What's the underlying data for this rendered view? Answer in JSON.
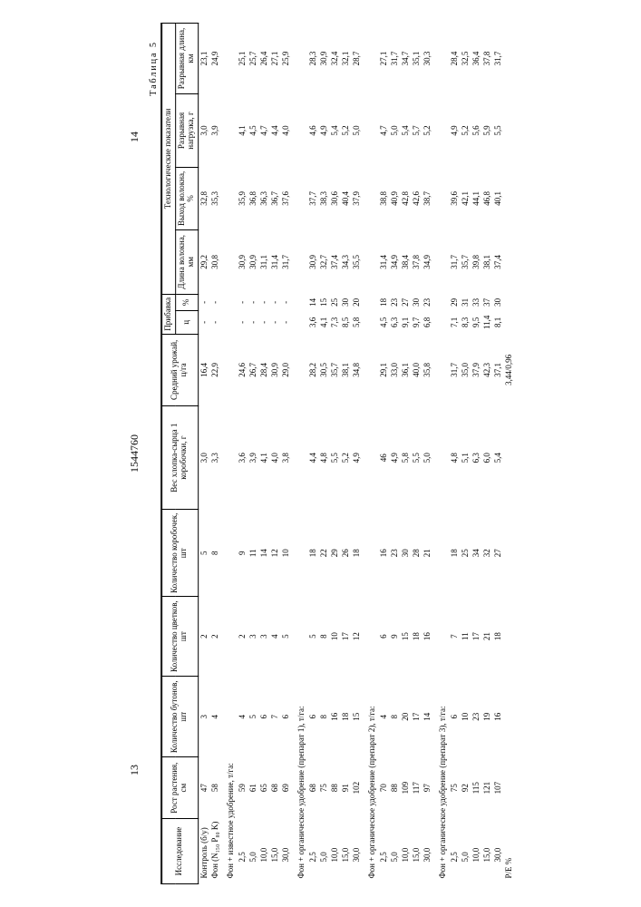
{
  "page_left": "13",
  "doc_number": "1544760",
  "page_right": "14",
  "table_caption": "Таблица 5",
  "columns": [
    "Исследование",
    "Рост растения, см",
    "Количество бутонов, шт",
    "Количество цветков, шт",
    "Количество коробочек, шт",
    "Вес хлопка-сырца 1 коробочки, г",
    "Средний урожай, ц/га",
    "Прибавка ц",
    "Прибавка %",
    "Длина волокна, мм",
    "Выход волокна, %",
    "Разрывная нагрузка, г",
    "Разрывная длина, км"
  ],
  "group_header_tech": "Технологические показатели",
  "rows": [
    {
      "type": "data",
      "label": "Контроль (б/у)",
      "v": [
        "47",
        "3",
        "2",
        "5",
        "3,0",
        "16,4",
        "-",
        "-",
        "29,2",
        "32,8",
        "3,0",
        "23,1"
      ]
    },
    {
      "type": "data",
      "label": "Фон (N₁₅₀ P₈₀ K)",
      "v": [
        "58",
        "4",
        "2",
        "8",
        "3,3",
        "22,9",
        "-",
        "-",
        "30,8",
        "35,3",
        "3,9",
        "24,9"
      ]
    },
    {
      "type": "section",
      "label": "Фон + известное удобрение, т/га:"
    },
    {
      "type": "sub",
      "label": "2,5",
      "v": [
        "59",
        "4",
        "2",
        "9",
        "3,6",
        "24,6",
        "-",
        "-",
        "30,9",
        "35,9",
        "4,1",
        "25,1"
      ]
    },
    {
      "type": "sub",
      "label": "5,0",
      "v": [
        "61",
        "5",
        "3",
        "11",
        "3,9",
        "26,7",
        "-",
        "-",
        "30,9",
        "36,8",
        "4,5",
        "25,7"
      ]
    },
    {
      "type": "sub",
      "label": "10,0",
      "v": [
        "65",
        "6",
        "3",
        "14",
        "4,1",
        "28,4",
        "-",
        "-",
        "31,1",
        "36,3",
        "4,7",
        "26,4"
      ]
    },
    {
      "type": "sub",
      "label": "15,0",
      "v": [
        "68",
        "7",
        "4",
        "12",
        "4,0",
        "30,9",
        "-",
        "-",
        "31,4",
        "36,7",
        "4,4",
        "27,1"
      ]
    },
    {
      "type": "sub",
      "label": "30,0",
      "v": [
        "69",
        "6",
        "5",
        "10",
        "3,8",
        "29,0",
        "-",
        "-",
        "31,7",
        "37,6",
        "4,0",
        "25,9"
      ]
    },
    {
      "type": "section",
      "label": "Фон + органическое удобрение (препарат 1), т/га:"
    },
    {
      "type": "sub",
      "label": "2,5",
      "v": [
        "68",
        "6",
        "5",
        "18",
        "4,4",
        "28,2",
        "3,6",
        "14",
        "30,9",
        "37,7",
        "4,6",
        "28,3"
      ]
    },
    {
      "type": "sub",
      "label": "5,0",
      "v": [
        "75",
        "8",
        "8",
        "22",
        "4,8",
        "30,5",
        "4,1",
        "15",
        "32,7",
        "38,3",
        "4,9",
        "30,9"
      ]
    },
    {
      "type": "sub",
      "label": "10,0",
      "v": [
        "88",
        "16",
        "10",
        "29",
        "5,5",
        "35,7",
        "7,3",
        "25",
        "37,4",
        "30,6",
        "5,4",
        "32,4"
      ]
    },
    {
      "type": "sub",
      "label": "15,0",
      "v": [
        "91",
        "18",
        "17",
        "26",
        "5,2",
        "38,1",
        "8,5",
        "30",
        "34,3",
        "40,4",
        "5,2",
        "32,1"
      ]
    },
    {
      "type": "sub",
      "label": "30,0",
      "v": [
        "102",
        "15",
        "12",
        "18",
        "4,9",
        "34,8",
        "5,8",
        "20",
        "35,5",
        "37,9",
        "5,0",
        "28,7"
      ]
    },
    {
      "type": "section",
      "label": "Фон + органическое удобрение (препарат 2), т/га:"
    },
    {
      "type": "sub",
      "label": "2,5",
      "v": [
        "70",
        "4",
        "6",
        "16",
        "46",
        "29,1",
        "4,5",
        "18",
        "31,4",
        "38,8",
        "4,7",
        "27,1"
      ]
    },
    {
      "type": "sub",
      "label": "5,0",
      "v": [
        "88",
        "8",
        "9",
        "23",
        "4,9",
        "33,0",
        "6,3",
        "23",
        "34,9",
        "40,9",
        "5,0",
        "31,7"
      ]
    },
    {
      "type": "sub",
      "label": "10,0",
      "v": [
        "109",
        "20",
        "15",
        "30",
        "5,8",
        "36,1",
        "9,1",
        "27",
        "38,4",
        "42,8",
        "5,4",
        "34,7"
      ]
    },
    {
      "type": "sub",
      "label": "15,0",
      "v": [
        "117",
        "17",
        "18",
        "28",
        "5,5",
        "40,0",
        "9,7",
        "30",
        "37,8",
        "42,6",
        "5,7",
        "35,1"
      ]
    },
    {
      "type": "sub",
      "label": "30,0",
      "v": [
        "97",
        "14",
        "16",
        "21",
        "5,0",
        "35,8",
        "6,8",
        "23",
        "34,9",
        "38,7",
        "5,2",
        "30,3"
      ]
    },
    {
      "type": "section",
      "label": "Фон + органическое удобрение (препарат 3), т/га:"
    },
    {
      "type": "sub",
      "label": "2,5",
      "v": [
        "75",
        "6",
        "7",
        "18",
        "4,8",
        "31,7",
        "7,1",
        "29",
        "31,7",
        "39,6",
        "4,9",
        "28,4"
      ]
    },
    {
      "type": "sub",
      "label": "5,0",
      "v": [
        "92",
        "10",
        "11",
        "25",
        "5,1",
        "35,0",
        "8,3",
        "31",
        "35,7",
        "42,1",
        "5,2",
        "32,5"
      ]
    },
    {
      "type": "sub",
      "label": "10,0",
      "v": [
        "115",
        "23",
        "17",
        "34",
        "6,3",
        "37,9",
        "9,5",
        "33",
        "39,8",
        "44,1",
        "5,6",
        "36,4"
      ]
    },
    {
      "type": "sub",
      "label": "15,0",
      "v": [
        "121",
        "19",
        "21",
        "32",
        "6,0",
        "42,3",
        "11,4",
        "37",
        "38,1",
        "46,8",
        "5,9",
        "37,8"
      ]
    },
    {
      "type": "sub",
      "label": "30,0",
      "v": [
        "107",
        "16",
        "18",
        "27",
        "5,4",
        "37,1",
        "8,1",
        "30",
        "37,4",
        "40,1",
        "5,5",
        "31,7"
      ]
    },
    {
      "type": "data",
      "label": "Р/Е %",
      "v": [
        "",
        "",
        "",
        "",
        "",
        "3,44/0,96",
        "",
        "",
        "",
        "",
        "",
        ""
      ]
    }
  ]
}
